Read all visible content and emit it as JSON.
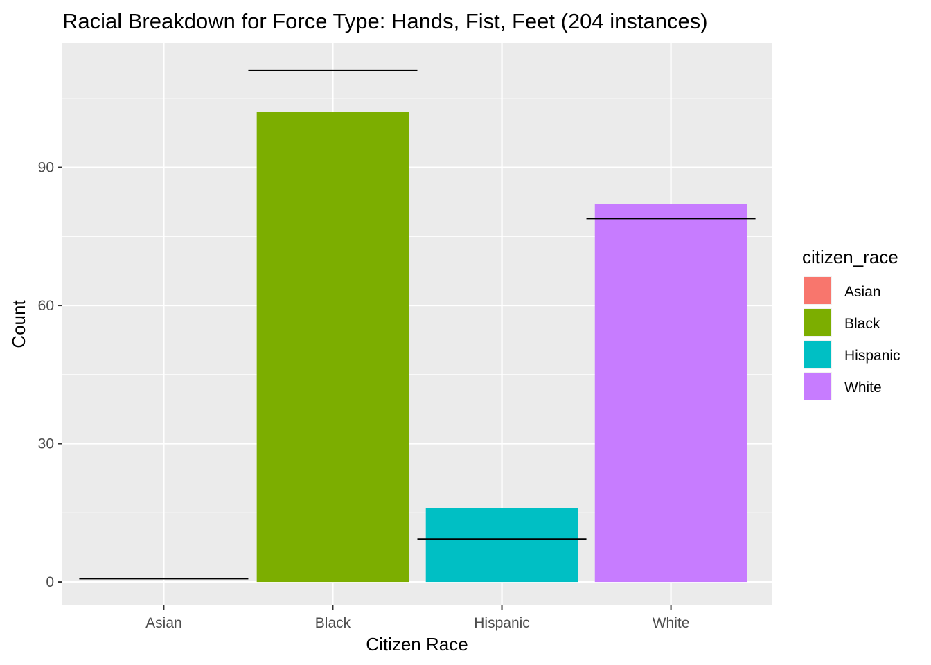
{
  "chart_data": {
    "type": "bar",
    "title": "Racial Breakdown for Force Type: Hands, Fist, Feet (204 instances)",
    "xlabel": "Citizen Race",
    "ylabel": "Count",
    "categories": [
      "Asian",
      "Black",
      "Hispanic",
      "White"
    ],
    "values": [
      0,
      102,
      16,
      82
    ],
    "reference_values": [
      0.7,
      111,
      9.3,
      78.9
    ],
    "colors": [
      "#F8766D",
      "#7CAE00",
      "#00BFC4",
      "#C77CFF"
    ],
    "ylim": [
      -5.1,
      117
    ],
    "yticks": [
      0,
      30,
      60,
      90
    ],
    "ytick_labels": [
      "0",
      "30",
      "60",
      "90"
    ],
    "grid": true,
    "panel_background": "#EBEBEB",
    "grid_color": "#FFFFFF",
    "reference_line_color": "#000000",
    "legend": {
      "title": "citizen_race",
      "position": "right",
      "entries": [
        "Asian",
        "Black",
        "Hispanic",
        "White"
      ]
    }
  }
}
